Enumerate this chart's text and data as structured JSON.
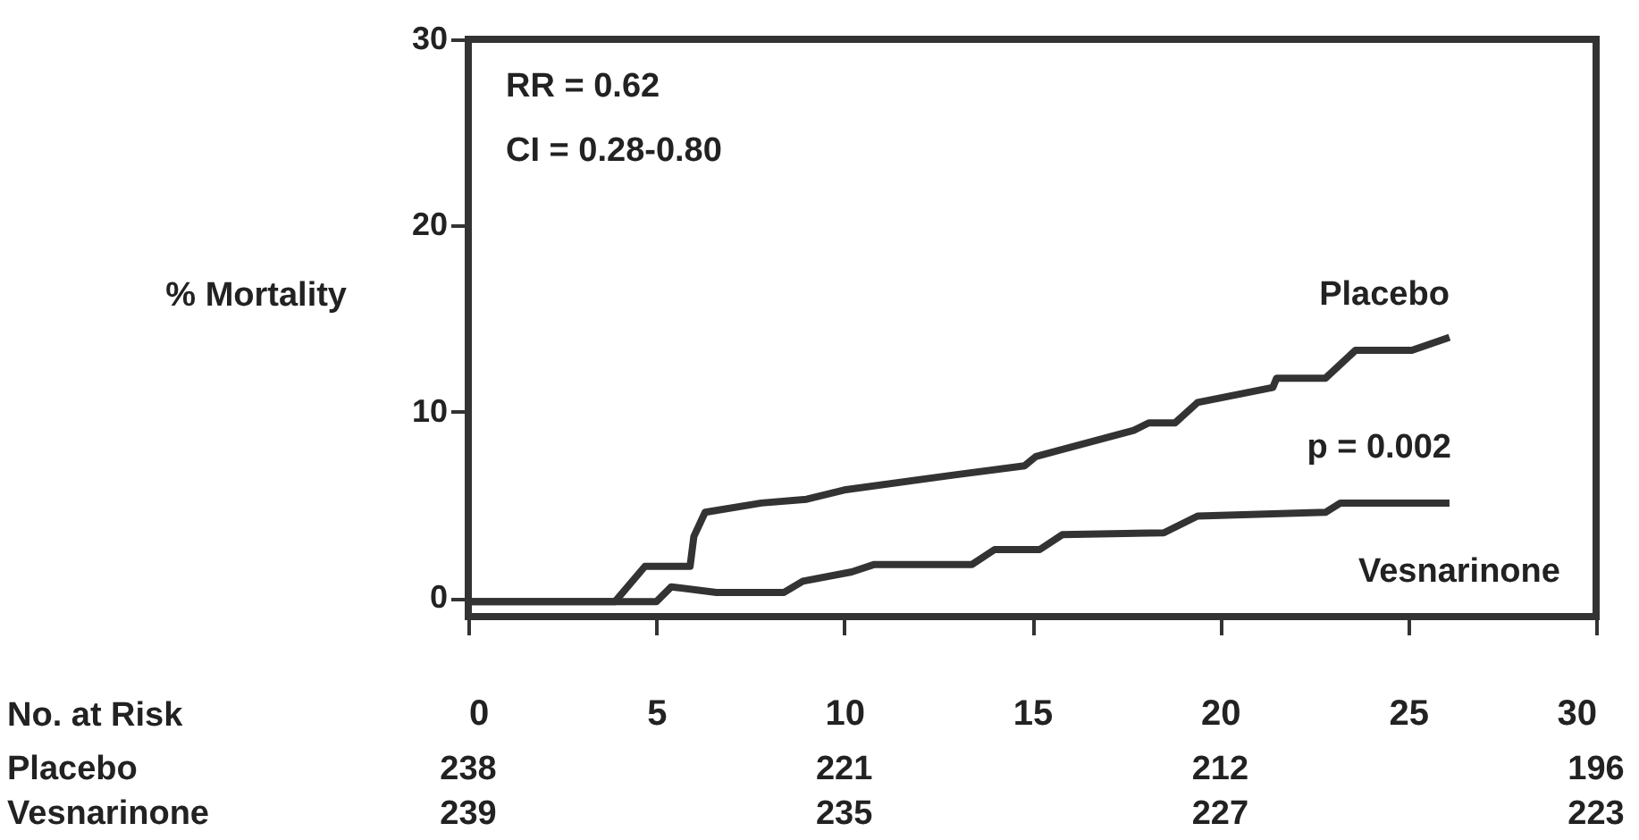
{
  "chart_data": {
    "type": "step",
    "ylabel": "% Mortality",
    "x": [
      0,
      3.9,
      4.7,
      5.9,
      6.0,
      6.3,
      7.8,
      9.0,
      10.0,
      12.9,
      14.8,
      15.1,
      17.7,
      18.1,
      18.8,
      19.4,
      21.4,
      21.5,
      22.8,
      23.6,
      25.1,
      26.1
    ],
    "series": [
      {
        "name": "Placebo",
        "color": "#333333",
        "values": [
          -0.2,
          -0.2,
          1.7,
          1.7,
          3.3,
          4.6,
          5.1,
          5.3,
          5.8,
          6.6,
          7.1,
          7.6,
          9.0,
          9.4,
          9.4,
          10.5,
          11.3,
          11.8,
          11.8,
          13.3,
          13.3,
          14.0
        ]
      },
      {
        "name": "Vesnarinone",
        "color": "#333333",
        "x": [
          0,
          5.0,
          5.4,
          6.6,
          8.4,
          8.9,
          10.2,
          10.8,
          13.4,
          14.0,
          15.2,
          15.8,
          18.5,
          19.4,
          22.8,
          23.2,
          26.1
        ],
        "values": [
          -0.2,
          -0.2,
          0.6,
          0.3,
          0.3,
          0.9,
          1.4,
          1.8,
          1.8,
          2.6,
          2.6,
          3.4,
          3.5,
          4.4,
          4.6,
          5.1,
          5.1
        ]
      }
    ],
    "xlim": [
      0,
      30
    ],
    "xticks": [
      0,
      5,
      10,
      15,
      20,
      25,
      30
    ],
    "ylim": [
      -1,
      30
    ],
    "yticks": [
      0,
      10,
      20,
      30
    ],
    "annotations": [
      "RR = 0.62",
      "CI = 0.28-0.80",
      "p = 0.002",
      "No. at Risk",
      "238",
      "221",
      "212",
      "196",
      "239",
      "235",
      "227",
      "223"
    ],
    "grid": false,
    "line_style": "solid",
    "marker": "none"
  }
}
